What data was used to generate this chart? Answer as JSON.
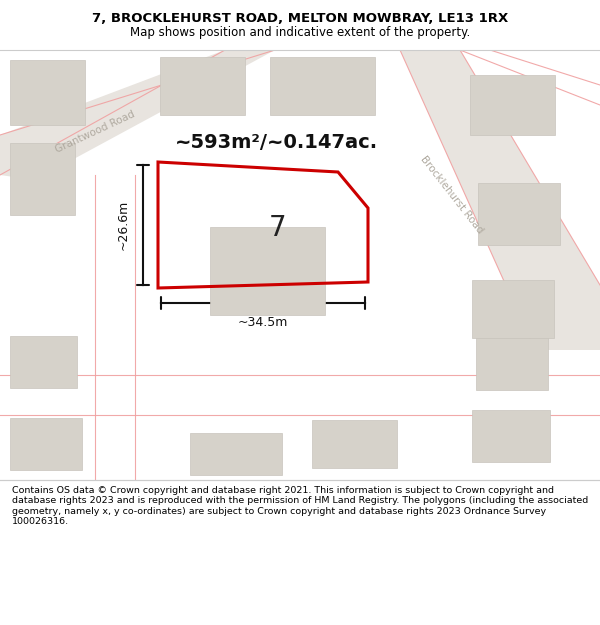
{
  "title_line1": "7, BROCKLEHURST ROAD, MELTON MOWBRAY, LE13 1RX",
  "title_line2": "Map shows position and indicative extent of the property.",
  "area_text": "~593m²/~0.147ac.",
  "dim_width": "~34.5m",
  "dim_height": "~26.6m",
  "property_number": "7",
  "footer_text": "Contains OS data © Crown copyright and database right 2021. This information is subject to Crown copyright and database rights 2023 and is reproduced with the permission of HM Land Registry. The polygons (including the associated geometry, namely x, y co-ordinates) are subject to Crown copyright and database rights 2023 Ordnance Survey 100026316.",
  "map_bg": "#f0eeeb",
  "building_color": "#d6d2ca",
  "building_edge": "#c8c4bc",
  "road_fill": "#e8e4df",
  "red_outline": "#cc0000",
  "road_label_color": "#b0aaa0",
  "road_line_color": "#f0a0a0",
  "dim_color": "#111111",
  "footer_bg": "#ffffff",
  "header_bg": "#ffffff"
}
